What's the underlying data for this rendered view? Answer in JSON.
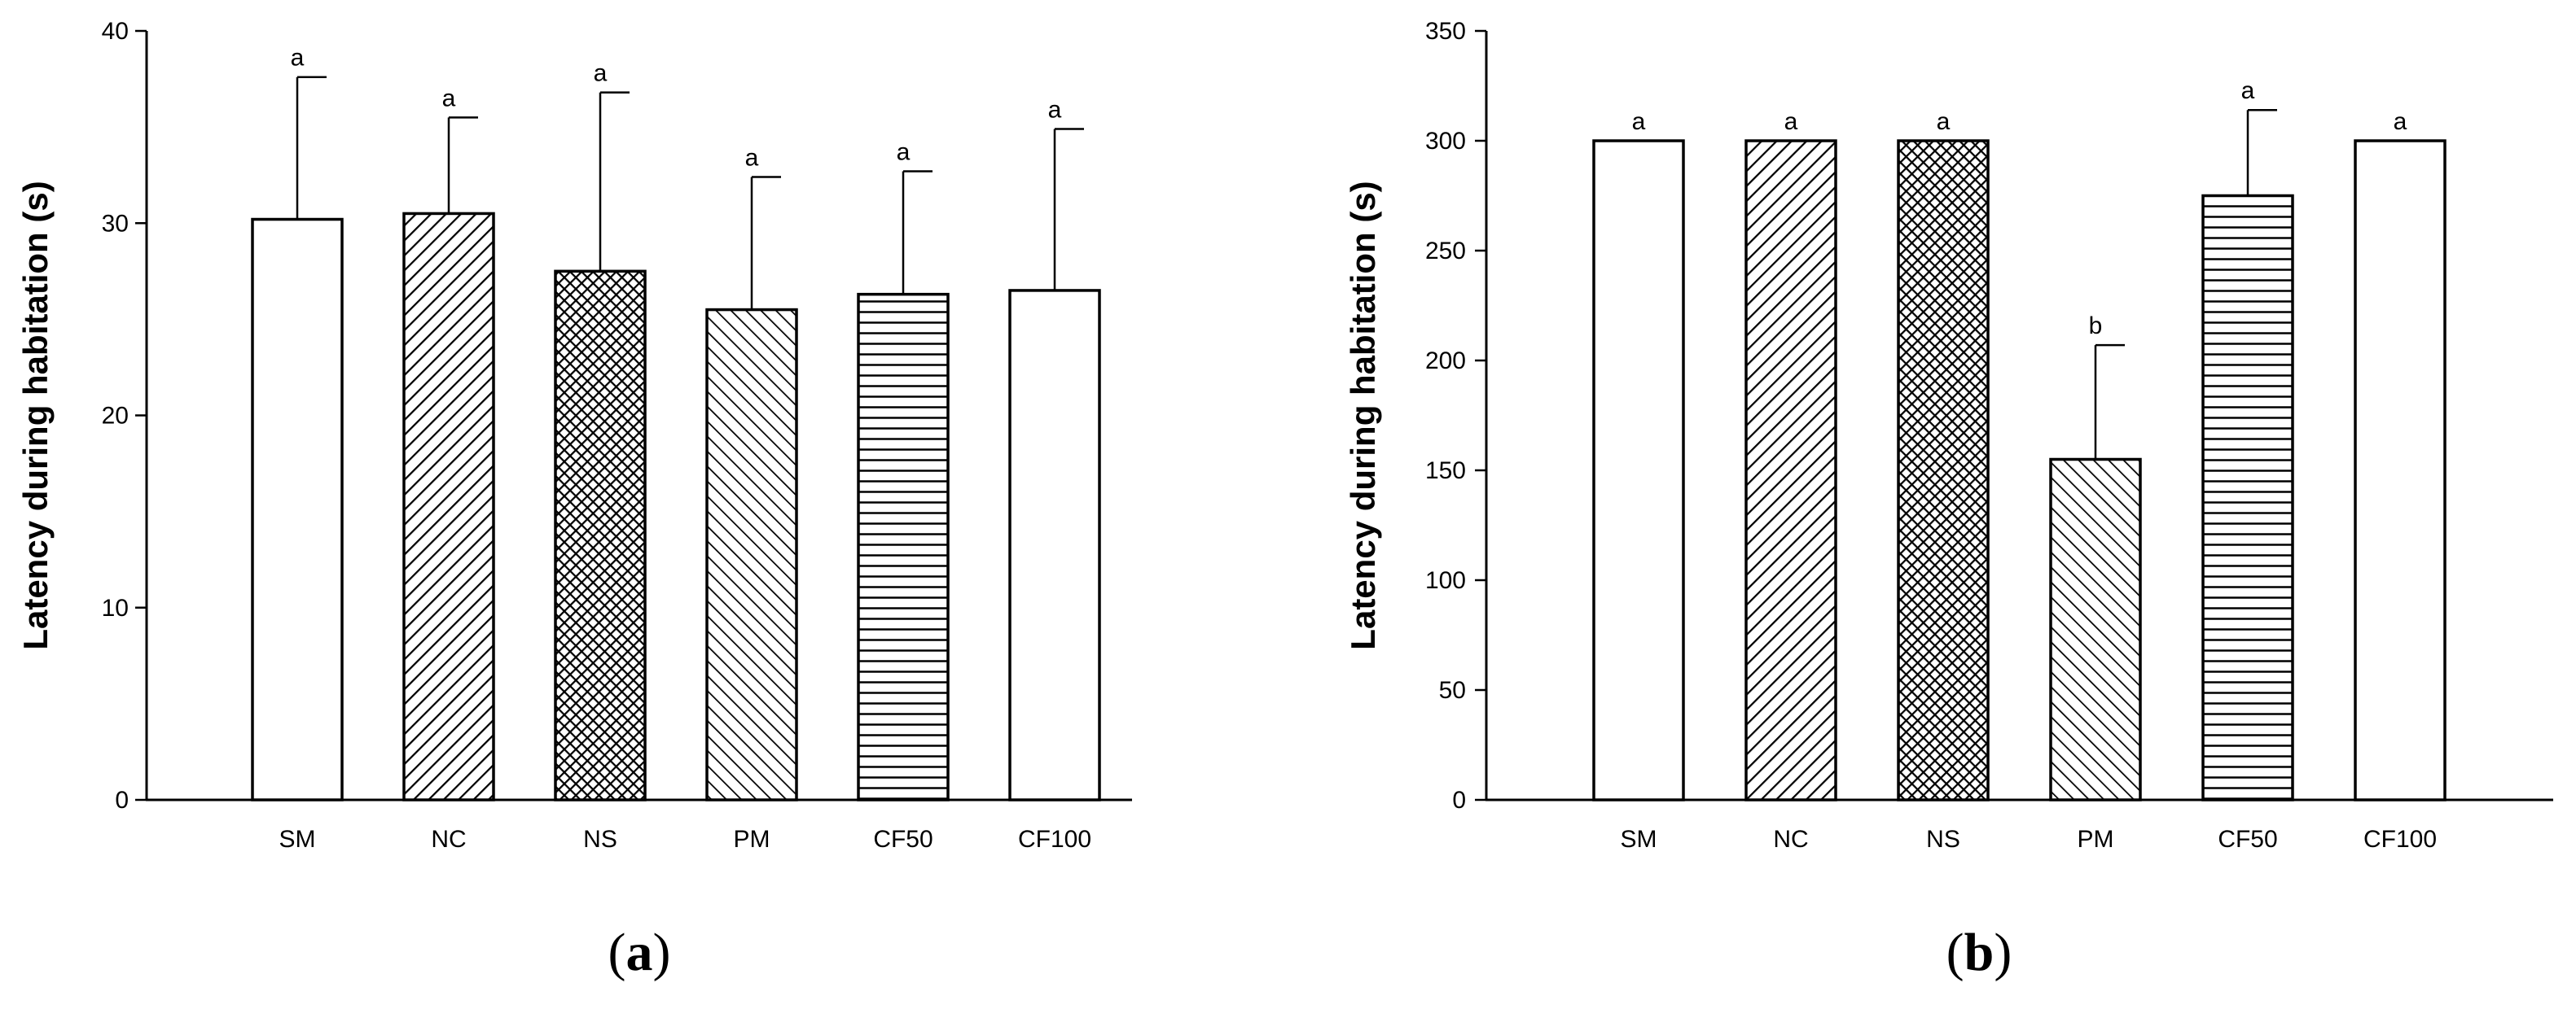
{
  "chart_data": [
    {
      "type": "bar",
      "panel_label": "a",
      "categories": [
        "SM",
        "NC",
        "NS",
        "PM",
        "CF50",
        "CF100"
      ],
      "patterns": [
        "white",
        "diag-right",
        "crosshatch",
        "diag-left",
        "horizontal",
        "white"
      ],
      "values": [
        30.2,
        30.5,
        27.5,
        25.5,
        26.3,
        26.5
      ],
      "errors": [
        7.4,
        5.0,
        9.3,
        6.9,
        6.4,
        8.4
      ],
      "letters": [
        "a",
        "a",
        "a",
        "a",
        "a",
        "a"
      ],
      "ylabel": "Latency during habitation (s)",
      "xlabel": "",
      "ylim": [
        0,
        40
      ],
      "yticks": [
        0,
        10,
        20,
        30,
        40
      ],
      "grid": false
    },
    {
      "type": "bar",
      "panel_label": "b",
      "categories": [
        "SM",
        "NC",
        "NS",
        "PM",
        "CF50",
        "CF100"
      ],
      "patterns": [
        "white",
        "diag-right",
        "crosshatch",
        "diag-left",
        "horizontal",
        "white"
      ],
      "values": [
        300,
        300,
        300,
        155,
        275,
        300
      ],
      "errors": [
        0,
        0,
        0,
        52,
        39,
        0
      ],
      "letters": [
        "a",
        "a",
        "a",
        "b",
        "a",
        "a"
      ],
      "ylabel": "Latency during habitation (s)",
      "xlabel": "",
      "ylim": [
        0,
        350
      ],
      "yticks": [
        0,
        50,
        100,
        150,
        200,
        250,
        300,
        350
      ],
      "grid": false
    }
  ]
}
